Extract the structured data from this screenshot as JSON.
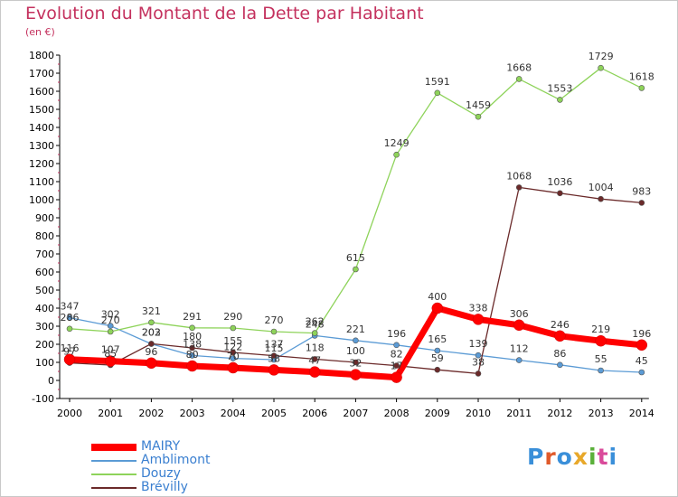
{
  "title": "Evolution du Montant de la Dette par Habitant",
  "subtitle": "(en €)",
  "logo": {
    "text": "Proxiti",
    "colors": [
      "#3a8fd9",
      "#e05a2a",
      "#3a8fd9",
      "#e8a82a",
      "#5ab03a",
      "#d94a9a",
      "#3a8fd9"
    ]
  },
  "chart_data": {
    "type": "line",
    "categories": [
      "2000",
      "2001",
      "2002",
      "2003",
      "2004",
      "2005",
      "2006",
      "2007",
      "2008",
      "2009",
      "2010",
      "2011",
      "2012",
      "2013",
      "2014"
    ],
    "ylim": [
      -100,
      1800
    ],
    "yticks": [
      "-100",
      "0",
      "100",
      "200",
      "300",
      "400",
      "500",
      "600",
      "700",
      "800",
      "900",
      "1000",
      "1100",
      "1200",
      "1300",
      "1400",
      "1500",
      "1600",
      "1700",
      "1800"
    ],
    "grid": false,
    "legend": "bottom-left",
    "series": [
      {
        "name": "Amblimont",
        "color": "#5b9bd5",
        "values": [
          347,
          302,
          202,
          138,
          122,
          115,
          248,
          221,
          196,
          165,
          139,
          112,
          86,
          55,
          45
        ],
        "labels": [
          "347",
          "302",
          "202",
          "138",
          "122",
          "115",
          "248",
          "221",
          "196",
          "165",
          "139",
          "112",
          "86",
          "55",
          "45"
        ]
      },
      {
        "name": "Douzy",
        "color": "#8ed35a",
        "values": [
          286,
          270,
          321,
          291,
          290,
          270,
          262,
          615,
          1249,
          1591,
          1459,
          1668,
          1553,
          1729,
          1618
        ],
        "labels": [
          "286",
          "270",
          "321",
          "291",
          "290",
          "270",
          "262",
          "615",
          "1249",
          "1591",
          "1459",
          "1668",
          "1553",
          "1729",
          "1618"
        ]
      },
      {
        "name": "Brévilly",
        "color": "#6b2a2a",
        "values": [
          97,
          85,
          203,
          180,
          155,
          137,
          118,
          100,
          82,
          59,
          38,
          1068,
          1036,
          1004,
          983
        ],
        "labels": [
          "97",
          "85",
          "203",
          "180",
          "155",
          "137",
          "118",
          "100",
          "82",
          "59",
          "38",
          "1068",
          "1036",
          "1004",
          "983"
        ]
      },
      {
        "name": "MAIRY",
        "color": "#ff0000",
        "values": [
          116,
          107,
          96,
          80,
          70,
          58,
          47,
          32,
          17,
          400,
          338,
          306,
          246,
          219,
          196
        ],
        "labels": [
          "116",
          "107",
          "96",
          "80",
          "70",
          "58",
          "47",
          "32",
          "17",
          "400",
          "338",
          "306",
          "246",
          "219",
          "196"
        ]
      }
    ]
  },
  "legend_items": [
    "MAIRY",
    "Amblimont",
    "Douzy",
    "Brévilly"
  ]
}
